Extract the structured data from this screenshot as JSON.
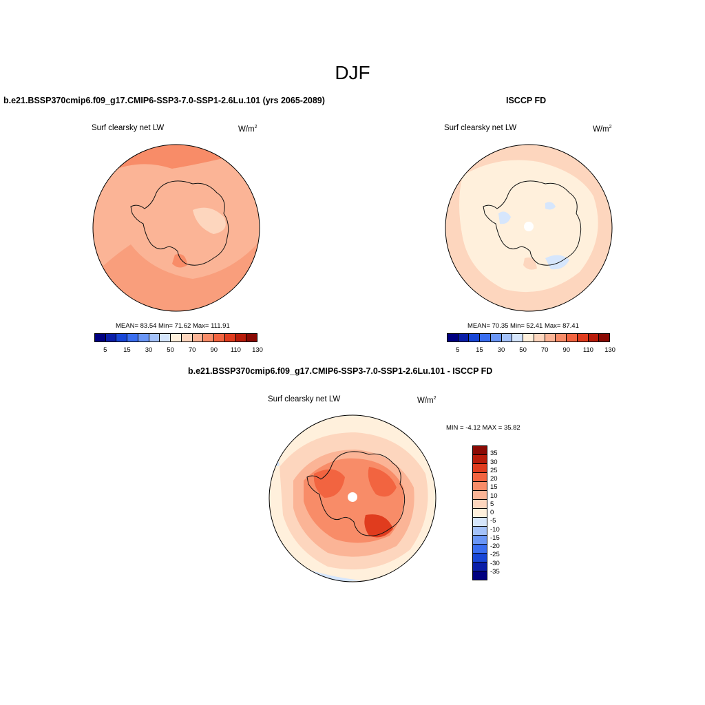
{
  "title": "DJF",
  "panels": {
    "model": {
      "title": "b.e21.BSSP370cmip6.f09_g17.CMIP6-SSP3-7.0-SSP1-2.6Lu.101 (yrs 2065-2089)",
      "variable": "Surf clearsky net LW",
      "unit": "W/m",
      "unit_exp": "2",
      "stats": "MEAN=  83.54  Min=  71.62  Max= 111.91",
      "mean": 83.54,
      "min": 71.62,
      "max": 111.91
    },
    "obs": {
      "title": "ISCCP FD",
      "variable": "Surf clearsky net LW",
      "unit": "W/m",
      "unit_exp": "2",
      "stats": "MEAN=  70.35  Min=  52.41  Max=  87.41",
      "mean": 70.35,
      "min": 52.41,
      "max": 87.41
    },
    "diff": {
      "title": "b.e21.BSSP370cmip6.f09_g17.CMIP6-SSP3-7.0-SSP1-2.6Lu.101 - ISCCP FD",
      "variable": "Surf clearsky net LW",
      "unit": "W/m",
      "unit_exp": "2",
      "stats": "MIN =  -4.12 MAX =  35.82",
      "min": -4.12,
      "max": 35.82
    }
  },
  "abs_colorbar": {
    "labels": [
      "5",
      "15",
      "30",
      "50",
      "70",
      "90",
      "110",
      "130"
    ],
    "colors": [
      "#000080",
      "#0a1ea8",
      "#1846d6",
      "#3a6ef0",
      "#6a96f6",
      "#a4c2fa",
      "#d6e6fc",
      "#fff0dc",
      "#fdd6be",
      "#fbb496",
      "#f88c68",
      "#f26440",
      "#e03c1e",
      "#b81c0a",
      "#8a0a04"
    ]
  },
  "diff_colorbar": {
    "labels": [
      "35",
      "30",
      "25",
      "20",
      "15",
      "10",
      "5",
      "0",
      "-5",
      "-10",
      "-15",
      "-20",
      "-25",
      "-30",
      "-35"
    ],
    "colors": [
      "#8a0a04",
      "#b81c0a",
      "#e03c1e",
      "#f26440",
      "#f88c68",
      "#fbb496",
      "#fdd6be",
      "#fff0dc",
      "#d6e6fc",
      "#a4c2fa",
      "#6a96f6",
      "#3a6ef0",
      "#1846d6",
      "#0a1ea8",
      "#000080"
    ]
  },
  "field_colors": {
    "model_base": "#fbb496",
    "model_high": "#f88c68",
    "model_low": "#fdd6be",
    "obs_base": "#fdd6be",
    "obs_light": "#fff0dc",
    "obs_blue": "#d6e6fc",
    "diff_light": "#fff0dc",
    "diff_mid": "#fdd6be",
    "diff_base": "#fbb496",
    "diff_high": "#f88c68",
    "diff_higher": "#f26440",
    "diff_top": "#e03c1e",
    "diff_blue": "#d6e6fc",
    "coast": "#111111"
  }
}
